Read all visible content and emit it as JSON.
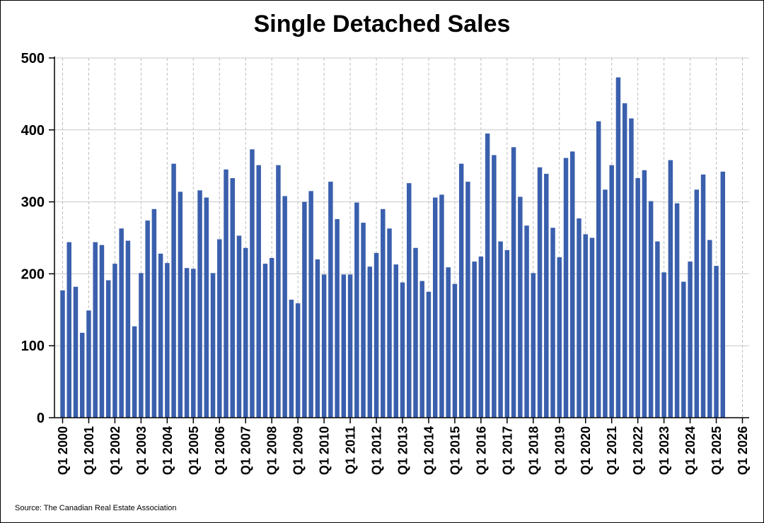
{
  "chart_data": {
    "type": "bar",
    "title": "Single Detached Sales",
    "xlabel": "",
    "ylabel": "",
    "ylim": [
      0,
      500
    ],
    "yticks": [
      0,
      100,
      200,
      300,
      400,
      500
    ],
    "xtick_labels": [
      "Q1 2000",
      "Q1 2001",
      "Q1 2002",
      "Q1 2003",
      "Q1 2004",
      "Q1 2005",
      "Q1 2006",
      "Q1 2007",
      "Q1 2008",
      "Q1 2009",
      "Q1 2010",
      "Q1 2011",
      "Q1 2012",
      "Q1 2013",
      "Q1 2014",
      "Q1 2015",
      "Q1 2016",
      "Q1 2017",
      "Q1 2018",
      "Q1 2019",
      "Q1 2020",
      "Q1 2021",
      "Q1 2022",
      "Q1 2023",
      "Q1 2024",
      "Q1 2025",
      "Q1 2026"
    ],
    "grid": true,
    "bar_color": "#3a5fad",
    "categories": [
      "Q1 2000",
      "Q2 2000",
      "Q3 2000",
      "Q4 2000",
      "Q1 2001",
      "Q2 2001",
      "Q3 2001",
      "Q4 2001",
      "Q1 2002",
      "Q2 2002",
      "Q3 2002",
      "Q4 2002",
      "Q1 2003",
      "Q2 2003",
      "Q3 2003",
      "Q4 2003",
      "Q1 2004",
      "Q2 2004",
      "Q3 2004",
      "Q4 2004",
      "Q1 2005",
      "Q2 2005",
      "Q3 2005",
      "Q4 2005",
      "Q1 2006",
      "Q2 2006",
      "Q3 2006",
      "Q4 2006",
      "Q1 2007",
      "Q2 2007",
      "Q3 2007",
      "Q4 2007",
      "Q1 2008",
      "Q2 2008",
      "Q3 2008",
      "Q4 2008",
      "Q1 2009",
      "Q2 2009",
      "Q3 2009",
      "Q4 2009",
      "Q1 2010",
      "Q2 2010",
      "Q3 2010",
      "Q4 2010",
      "Q1 2011",
      "Q2 2011",
      "Q3 2011",
      "Q4 2011",
      "Q1 2012",
      "Q2 2012",
      "Q3 2012",
      "Q4 2012",
      "Q1 2013",
      "Q2 2013",
      "Q3 2013",
      "Q4 2013",
      "Q1 2014",
      "Q2 2014",
      "Q3 2014",
      "Q4 2014",
      "Q1 2015",
      "Q2 2015",
      "Q3 2015",
      "Q4 2015",
      "Q1 2016",
      "Q2 2016",
      "Q3 2016",
      "Q4 2016",
      "Q1 2017",
      "Q2 2017",
      "Q3 2017",
      "Q4 2017",
      "Q1 2018",
      "Q2 2018",
      "Q3 2018",
      "Q4 2018",
      "Q1 2019",
      "Q2 2019",
      "Q3 2019",
      "Q4 2019",
      "Q1 2020",
      "Q2 2020",
      "Q3 2020",
      "Q4 2020",
      "Q1 2021",
      "Q2 2021",
      "Q3 2021",
      "Q4 2021",
      "Q1 2022",
      "Q2 2022",
      "Q3 2022",
      "Q4 2022",
      "Q1 2023",
      "Q2 2023",
      "Q3 2023",
      "Q4 2023",
      "Q1 2024",
      "Q2 2024",
      "Q3 2024",
      "Q4 2024",
      "Q1 2025",
      "Q2 2025"
    ],
    "values": [
      177,
      244,
      182,
      118,
      149,
      244,
      240,
      191,
      214,
      263,
      246,
      127,
      201,
      274,
      290,
      228,
      215,
      353,
      314,
      208,
      207,
      316,
      306,
      201,
      248,
      345,
      333,
      253,
      236,
      373,
      351,
      214,
      222,
      351,
      308,
      164,
      159,
      300,
      315,
      220,
      199,
      328,
      276,
      199,
      199,
      299,
      271,
      210,
      229,
      290,
      263,
      213,
      188,
      326,
      236,
      190,
      175,
      306,
      310,
      209,
      186,
      353,
      328,
      217,
      224,
      395,
      365,
      245,
      233,
      376,
      307,
      267,
      201,
      348,
      339,
      264,
      223,
      361,
      370,
      277,
      255,
      250,
      412,
      317,
      351,
      473,
      437,
      416,
      333,
      344,
      301,
      245,
      202,
      358,
      298,
      189,
      217,
      317,
      338,
      247,
      211,
      342
    ]
  },
  "source": "Source: The Canadian Real Estate Association"
}
